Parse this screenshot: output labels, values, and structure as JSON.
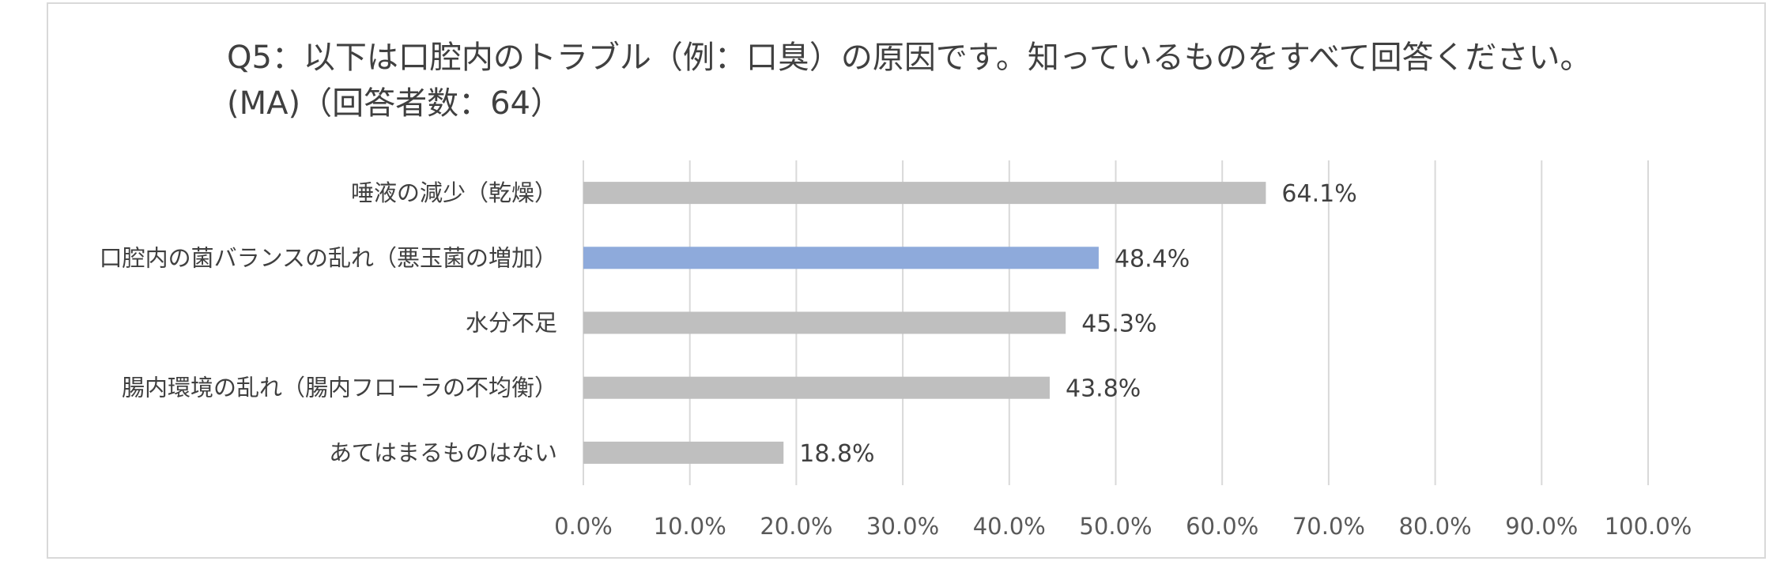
{
  "chart_data": {
    "type": "bar",
    "orientation": "horizontal",
    "title": "Q5：以下は口腔内のトラブル（例：口臭）の原因です。知っているものをすべて回答ください。(MA)（回答者数：64）",
    "categories": [
      "唾液の減少（乾燥）",
      "口腔内の菌バランスの乱れ（悪玉菌の増加）",
      "水分不足",
      "腸内環境の乱れ（腸内フローラの不均衡）",
      "あてはまるものはない"
    ],
    "values": [
      64.1,
      48.4,
      45.3,
      43.8,
      18.8
    ],
    "data_labels": [
      "64.1%",
      "48.4%",
      "45.3%",
      "43.8%",
      "18.8%"
    ],
    "x_ticks": [
      "0.0%",
      "10.0%",
      "20.0%",
      "30.0%",
      "40.0%",
      "50.0%",
      "60.0%",
      "70.0%",
      "80.0%",
      "90.0%",
      "100.0%"
    ],
    "xlim": [
      0,
      100
    ],
    "grid": "vertical",
    "legend": "none",
    "highlight_index": 1,
    "colors": {
      "bar": "#bfbfbf",
      "highlight": "#8eaadb",
      "grid": "#d9d9d9",
      "text": "#404040"
    }
  }
}
